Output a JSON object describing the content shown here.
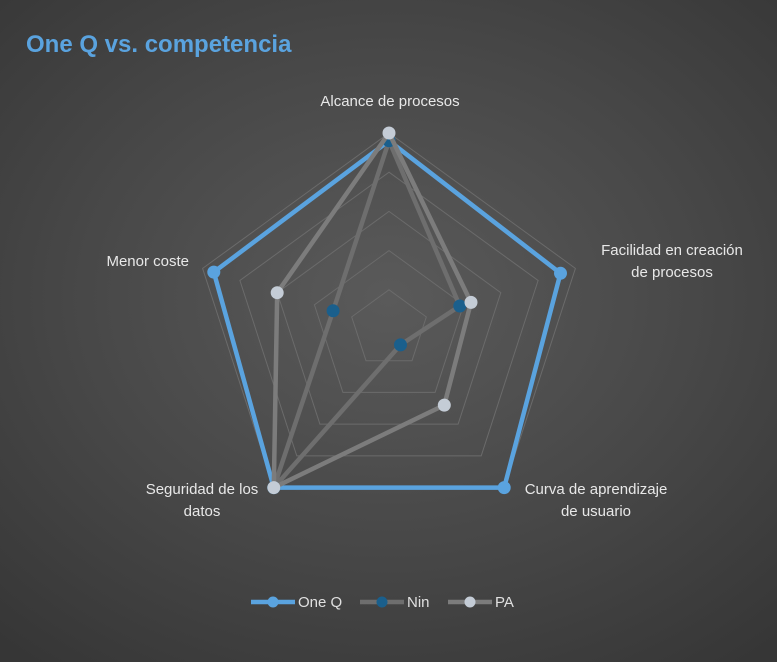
{
  "chart_data": {
    "type": "radar",
    "title": "One Q vs. competencia",
    "categories": [
      [
        "Alcance de procesos"
      ],
      [
        "Facilidad en creación",
        "de procesos"
      ],
      [
        "Curva de aprendizaje",
        "de usuario"
      ],
      [
        "Seguridad de los",
        "datos"
      ],
      [
        "Menor coste"
      ]
    ],
    "rlim": [
      0,
      5
    ],
    "grid": true,
    "legend": "bottom",
    "series": [
      {
        "name": "One Q",
        "values": [
          4.8,
          4.6,
          5.0,
          5.0,
          4.7
        ],
        "color": "#5aa3df",
        "marker_color": "#5aa3df"
      },
      {
        "name": "Nin",
        "values": [
          4.8,
          1.9,
          0.5,
          5.0,
          1.5
        ],
        "color": "#6e6e6e",
        "marker_color": "#1a5f8c"
      },
      {
        "name": "PA",
        "values": [
          5.0,
          2.2,
          2.4,
          5.0,
          3.0
        ],
        "color": "#7c7c7c",
        "marker_color": "#c4ccd6"
      }
    ]
  }
}
